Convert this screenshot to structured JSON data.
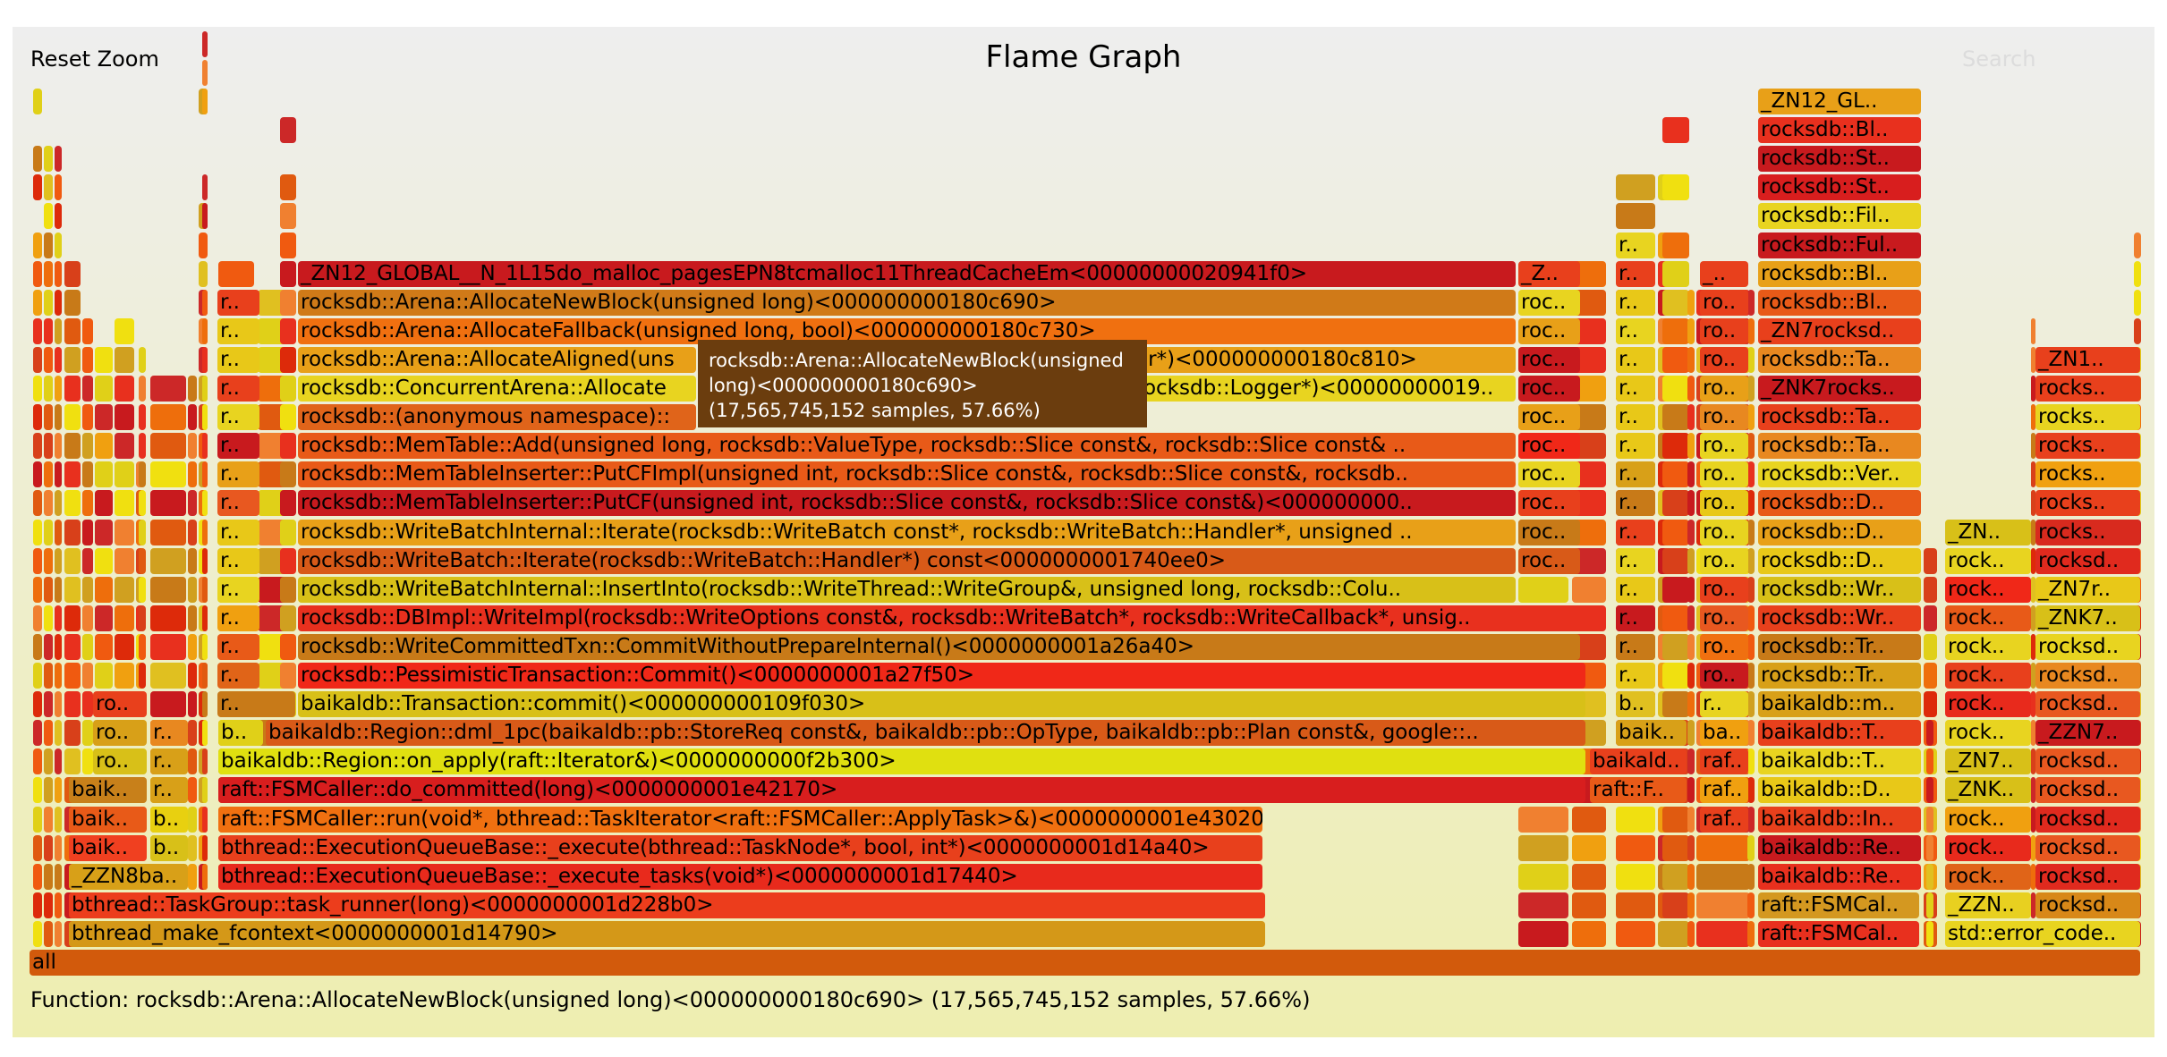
{
  "header": {
    "reset_zoom": "Reset Zoom",
    "title": "Flame Graph",
    "search": "Search"
  },
  "tooltip": {
    "text": "rocksdb::Arena::AllocateNewBlock(unsigned long)<000000000180c690> (17,565,745,152 samples, 57.66%)"
  },
  "details": {
    "text": "Function: rocksdb::Arena::AllocateNewBlock(unsigned long)<000000000180c690> (17,565,745,152 samples, 57.66%)"
  },
  "palette": [
    "#e8301e",
    "#f05a10",
    "#d8401a",
    "#e05a10",
    "#c87a18",
    "#d0a020",
    "#e0d018",
    "#f0e010",
    "#dd2a0a",
    "#ee6e0c",
    "#c81a1e",
    "#f08030",
    "#e0c020",
    "#cc2828",
    "#f0a010"
  ],
  "flame_rows": [
    {
      "row": 0,
      "frames": [
        {
          "label": "all",
          "color": "#d25a0c"
        }
      ]
    },
    {
      "row": 1,
      "frames": [
        {
          "label": "bthread_make_fcontext<0000000001d14790>",
          "color": "#d49818"
        },
        {
          "label": "raft::FSMCal..",
          "color": "#e8301e"
        },
        {
          "label": "std::error_code..",
          "color": "#e8d420"
        }
      ]
    },
    {
      "row": 2,
      "frames": [
        {
          "label": "bthread::TaskGroup::task_runner(long)<0000000001d228b0>",
          "color": "#ec3d1c"
        },
        {
          "label": "raft::FSMCal..",
          "color": "#d49820"
        },
        {
          "label": "_ZZN..",
          "color": "#e8d020"
        },
        {
          "label": "rocksd..",
          "color": "#d88818"
        }
      ]
    },
    {
      "row": 3,
      "frames": [
        {
          "label": "_ZZN8ba..",
          "color": "#d8a018"
        },
        {
          "label": "bthread::ExecutionQueueBase::_execute_tasks(void*)<0000000001d17440>",
          "color": "#e82a1c"
        },
        {
          "label": "baikaldb::Re..",
          "color": "#e8301e"
        },
        {
          "label": "rock..",
          "color": "#e06418"
        },
        {
          "label": "rocksd..",
          "color": "#e02a1e"
        }
      ]
    },
    {
      "row": 4,
      "frames": [
        {
          "label": "baik..",
          "color": "#f04020"
        },
        {
          "label": "b..",
          "color": "#d8c018"
        },
        {
          "label": "bthread::ExecutionQueueBase::_execute(bthread::TaskNode*, bool, int*)<0000000001d14a40>",
          "color": "#e8401c"
        },
        {
          "label": "baikaldb::Re..",
          "color": "#c81a1e"
        },
        {
          "label": "rock..",
          "color": "#e82a1c"
        },
        {
          "label": "rocksd..",
          "color": "#e85820"
        }
      ]
    },
    {
      "row": 5,
      "frames": [
        {
          "label": "baik..",
          "color": "#e85a18"
        },
        {
          "label": "b..",
          "color": "#e8d010"
        },
        {
          "label": "raft::FSMCaller::run(void*, bthread::TaskIterator<raft::FSMCaller::ApplyTask>&)<0000000001e43020>",
          "color": "#f07010"
        },
        {
          "label": "raf..",
          "color": "#e8401c"
        },
        {
          "label": "baikaldb::In..",
          "color": "#e8401c"
        },
        {
          "label": "rock..",
          "color": "#f0a010"
        },
        {
          "label": "rocksd..",
          "color": "#e02a1e"
        }
      ]
    },
    {
      "row": 6,
      "frames": [
        {
          "label": "baik..",
          "color": "#c8801a"
        },
        {
          "label": "r..",
          "color": "#d8a018"
        },
        {
          "label": "raft::FSMCaller::do_committed(long)<0000000001e42170>",
          "color": "#d81e1e"
        },
        {
          "label": "raft::F..",
          "color": "#e85a18"
        },
        {
          "label": "raf..",
          "color": "#f0a010"
        },
        {
          "label": "baikaldb::D..",
          "color": "#e8c818"
        },
        {
          "label": "_ZNK..",
          "color": "#d8c018"
        },
        {
          "label": "rocksd..",
          "color": "#e85820"
        }
      ]
    },
    {
      "row": 7,
      "frames": [
        {
          "label": "ro..",
          "color": "#d8c018"
        },
        {
          "label": "r..",
          "color": "#d8a018"
        },
        {
          "label": "baikaldb::Region::on_apply(raft::Iterator&)<0000000000f2b300>",
          "color": "#e0e010"
        },
        {
          "label": "baikald..",
          "color": "#e8401c"
        },
        {
          "label": "raf..",
          "color": "#e8401c"
        },
        {
          "label": "baikaldb::T..",
          "color": "#e8d420"
        },
        {
          "label": "_ZN7..",
          "color": "#d8c018"
        },
        {
          "label": "rocksd..",
          "color": "#e85820"
        }
      ]
    },
    {
      "row": 8,
      "frames": [
        {
          "label": "ro..",
          "color": "#d8a018"
        },
        {
          "label": "r..",
          "color": "#e88820"
        },
        {
          "label": "b..",
          "color": "#e0d018"
        },
        {
          "label": "baikaldb::Region::dml_1pc(baikaldb::pb::StoreReq const&, baikaldb::pb::OpType, baikaldb::pb::Plan const&, google::..",
          "color": "#d85a18"
        },
        {
          "label": "baik..",
          "color": "#d8a018"
        },
        {
          "label": "ba..",
          "color": "#f0a010"
        },
        {
          "label": "baikaldb::T..",
          "color": "#e8401c"
        },
        {
          "label": "rock..",
          "color": "#e8d420"
        },
        {
          "label": "_ZZN7..",
          "color": "#c81a1e"
        }
      ]
    },
    {
      "row": 9,
      "frames": [
        {
          "label": "ro..",
          "color": "#e8401c"
        },
        {
          "label": "r..",
          "color": "#c87a18"
        },
        {
          "label": "baikaldb::Transaction::commit()<000000000109f030>",
          "color": "#d8c018"
        },
        {
          "label": "b..",
          "color": "#e0c020"
        },
        {
          "label": "r..",
          "color": "#e8d420"
        },
        {
          "label": "baikaldb::m..",
          "color": "#d8a018"
        },
        {
          "label": "rock..",
          "color": "#e82a1c"
        },
        {
          "label": "rocksd..",
          "color": "#e85820"
        }
      ]
    },
    {
      "row": 10,
      "frames": [
        {
          "label": "r..",
          "color": "#e06418"
        },
        {
          "label": "rocksdb::PessimisticTransaction::Commit()<0000000001a27f50>",
          "color": "#f02818"
        },
        {
          "label": "r..",
          "color": "#e8c818"
        },
        {
          "label": "ro..",
          "color": "#c81a1e"
        },
        {
          "label": "rocksdb::Tr..",
          "color": "#d8a018"
        },
        {
          "label": "rock..",
          "color": "#e8401c"
        },
        {
          "label": "rocksd..",
          "color": "#e88820"
        }
      ]
    },
    {
      "row": 11,
      "frames": [
        {
          "label": "r..",
          "color": "#e85a18"
        },
        {
          "label": "rocksdb::WriteCommittedTxn::CommitWithoutPrepareInternal()<0000000001a26a40>",
          "color": "#c87a18"
        },
        {
          "label": "r..",
          "color": "#c87a18"
        },
        {
          "label": "ro..",
          "color": "#f07010"
        },
        {
          "label": "rocksdb::Tr..",
          "color": "#c87a18"
        },
        {
          "label": "rock..",
          "color": "#e8d420"
        },
        {
          "label": "rocksd..",
          "color": "#e8d420"
        }
      ]
    },
    {
      "row": 12,
      "frames": [
        {
          "label": "r..",
          "color": "#f0a010"
        },
        {
          "label": "rocksdb::DBImpl::WriteImpl(rocksdb::WriteOptions const&, rocksdb::WriteBatch*, rocksdb::WriteCallback*, unsig..",
          "color": "#e8301e"
        },
        {
          "label": "r..",
          "color": "#c81a1e"
        },
        {
          "label": "ro..",
          "color": "#e85820"
        },
        {
          "label": "rocksdb::Wr..",
          "color": "#e8401c"
        },
        {
          "label": "rock..",
          "color": "#e85a18"
        },
        {
          "label": "_ZNK7..",
          "color": "#d8c018"
        }
      ]
    },
    {
      "row": 13,
      "frames": [
        {
          "label": "r..",
          "color": "#e8d420"
        },
        {
          "label": "rocksdb::WriteBatchInternal::InsertInto(rocksdb::WriteThread::WriteGroup&, unsigned long, rocksdb::Colu..",
          "color": "#d8c018"
        },
        {
          "label": "r..",
          "color": "#e8c818"
        },
        {
          "label": "ro..",
          "color": "#e8401c"
        },
        {
          "label": "rocksdb::Wr..",
          "color": "#d8c018"
        },
        {
          "label": "rock..",
          "color": "#f02818"
        },
        {
          "label": "_ZN7r..",
          "color": "#e8c818"
        }
      ]
    },
    {
      "row": 14,
      "frames": [
        {
          "label": "r..",
          "color": "#e8c818"
        },
        {
          "label": "rocksdb::WriteBatch::Iterate(rocksdb::WriteBatch::Handler*) const<0000000001740ee0>",
          "color": "#d85a18"
        },
        {
          "label": "roc..",
          "color": "#d85a18"
        },
        {
          "label": "r..",
          "color": "#e8d420"
        },
        {
          "label": "ro..",
          "color": "#e8d420"
        },
        {
          "label": "rocksdb::D..",
          "color": "#e8c818"
        },
        {
          "label": "rock..",
          "color": "#e8d420"
        },
        {
          "label": "rocksd..",
          "color": "#e02a1e"
        }
      ]
    },
    {
      "row": 15,
      "frames": [
        {
          "label": "r..",
          "color": "#e8c818"
        },
        {
          "label": "rocksdb::WriteBatchInternal::Iterate(rocksdb::WriteBatch const*, rocksdb::WriteBatch::Handler*, unsigned ..",
          "color": "#e8a018"
        },
        {
          "label": "roc..",
          "color": "#c87a18"
        },
        {
          "label": "r..",
          "color": "#e8401c"
        },
        {
          "label": "ro..",
          "color": "#e8d420"
        },
        {
          "label": "rocksdb::D..",
          "color": "#e8a018"
        },
        {
          "label": "_ZN..",
          "color": "#d8c018"
        },
        {
          "label": "rocks..",
          "color": "#d82a1e"
        }
      ]
    },
    {
      "row": 16,
      "frames": [
        {
          "label": "r..",
          "color": "#e85820"
        },
        {
          "label": "rocksdb::MemTableInserter::PutCF(unsigned int, rocksdb::Slice const&, rocksdb::Slice const&)<000000000..",
          "color": "#c81a1e"
        },
        {
          "label": "roc..",
          "color": "#e8401c"
        },
        {
          "label": "r..",
          "color": "#c87a18"
        },
        {
          "label": "ro..",
          "color": "#e8c818"
        },
        {
          "label": "rocksdb::D..",
          "color": "#e85a18"
        },
        {
          "label": "rocks..",
          "color": "#e8401c"
        }
      ]
    },
    {
      "row": 17,
      "frames": [
        {
          "label": "r..",
          "color": "#e8a018"
        },
        {
          "label": "rocksdb::MemTableInserter::PutCFImpl(unsigned int, rocksdb::Slice const&, rocksdb::Slice const&, rocksdb..",
          "color": "#e85a18"
        },
        {
          "label": "roc..",
          "color": "#e8d420"
        },
        {
          "label": "r..",
          "color": "#d8a018"
        },
        {
          "label": "ro..",
          "color": "#e8d420"
        },
        {
          "label": "rocksdb::Ver..",
          "color": "#e8d420"
        },
        {
          "label": "rocks..",
          "color": "#f0a010"
        }
      ]
    },
    {
      "row": 18,
      "frames": [
        {
          "label": "r..",
          "color": "#c81a1e"
        },
        {
          "label": "rocksdb::MemTable::Add(unsigned long, rocksdb::ValueType, rocksdb::Slice const&, rocksdb::Slice const& ..",
          "color": "#e85a18"
        },
        {
          "label": "roc..",
          "color": "#f02818"
        },
        {
          "label": "r..",
          "color": "#e8c818"
        },
        {
          "label": "ro..",
          "color": "#e8d420"
        },
        {
          "label": "rocksdb::Ta..",
          "color": "#e88820"
        },
        {
          "label": "rocks..",
          "color": "#e8401c"
        }
      ]
    },
    {
      "row": 19,
      "frames": [
        {
          "label": "r..",
          "color": "#e8d420"
        },
        {
          "label": "rocksdb::(anonymous namespace)::",
          "color": "#e0641a"
        },
        {
          "label": "roc..",
          "color": "#e8a018"
        },
        {
          "label": "r..",
          "color": "#e8c818"
        },
        {
          "label": "ro..",
          "color": "#e88820"
        },
        {
          "label": "rocksdb::Ta..",
          "color": "#e8401c"
        },
        {
          "label": "rocks..",
          "color": "#e8d420"
        }
      ]
    },
    {
      "row": 20,
      "frames": [
        {
          "label": "r..",
          "color": "#e8401c"
        },
        {
          "label": "rocksdb::ConcurrentArena::Allocate",
          "color": "#e8d420"
        },
        {
          "label": "rocksdb::Logger*)<00000000019..",
          "color": "#e8d420"
        },
        {
          "label": "roc..",
          "color": "#c81a1e"
        },
        {
          "label": "r..",
          "color": "#e8c818"
        },
        {
          "label": "ro..",
          "color": "#e8a018"
        },
        {
          "label": "_ZNK7rocks..",
          "color": "#c81a1e"
        },
        {
          "label": "rocks..",
          "color": "#e8401c"
        }
      ]
    },
    {
      "row": 21,
      "frames": [
        {
          "label": "r..",
          "color": "#e8c818"
        },
        {
          "label": "rocksdb::Arena::AllocateAligned(uns",
          "color": "#e8a018"
        },
        {
          "label": "er*)<000000000180c810>",
          "color": "#e8a018"
        },
        {
          "label": "roc..",
          "color": "#c81a1e"
        },
        {
          "label": "r..",
          "color": "#e8c818"
        },
        {
          "label": "ro..",
          "color": "#e8401c"
        },
        {
          "label": "rocksdb::Ta..",
          "color": "#e88820"
        },
        {
          "label": "_ZN1..",
          "color": "#e8401c"
        }
      ]
    },
    {
      "row": 22,
      "frames": [
        {
          "label": "r..",
          "color": "#e8c818"
        },
        {
          "label": "rocksdb::Arena::AllocateFallback(unsigned long, bool)<000000000180c730>",
          "color": "#f07010"
        },
        {
          "label": "roc..",
          "color": "#e8a018"
        },
        {
          "label": "r..",
          "color": "#e8d420"
        },
        {
          "label": "ro..",
          "color": "#e8401c"
        },
        {
          "label": "_ZN7rocksd..",
          "color": "#e8401c"
        }
      ]
    },
    {
      "row": 23,
      "frames": [
        {
          "label": "r..",
          "color": "#e8401c"
        },
        {
          "label": "rocksdb::Arena::AllocateNewBlock(unsigned long)<000000000180c690>",
          "color": "#d07a18"
        },
        {
          "label": "roc..",
          "color": "#e8d420"
        },
        {
          "label": "r..",
          "color": "#e8c818"
        },
        {
          "label": "ro..",
          "color": "#e8401c"
        },
        {
          "label": "rocksdb::Bl..",
          "color": "#e85a18"
        }
      ]
    },
    {
      "row": 24,
      "frames": [
        {
          "label": "_ZN12_GLOBAL__N_1L15do_malloc_pagesEPN8tcmalloc11ThreadCacheEm<00000000020941f0>",
          "color": "#c81a1e"
        },
        {
          "label": "_Z..",
          "color": "#e8401c"
        },
        {
          "label": "r..",
          "color": "#e8401c"
        },
        {
          "label": "_..",
          "color": "#e8401c"
        },
        {
          "label": "rocksdb::Bl..",
          "color": "#e8a018"
        }
      ]
    },
    {
      "row": 25,
      "frames": [
        {
          "label": "r..",
          "color": "#e8d420"
        },
        {
          "label": "rocksdb::Ful..",
          "color": "#c81a1e"
        }
      ]
    },
    {
      "row": 26,
      "frames": [
        {
          "label": "rocksdb::Fil..",
          "color": "#e8d420"
        }
      ]
    },
    {
      "row": 27,
      "frames": [
        {
          "label": "rocksdb::St..",
          "color": "#d81e1e"
        }
      ]
    },
    {
      "row": 28,
      "frames": [
        {
          "label": "rocksdb::St..",
          "color": "#c81a1e"
        }
      ]
    },
    {
      "row": 29,
      "frames": [
        {
          "label": "rocksdb::Bl..",
          "color": "#e8301e"
        }
      ]
    },
    {
      "row": 30,
      "frames": [
        {
          "label": "_ZN12_GL..",
          "color": "#e8a018"
        }
      ]
    }
  ]
}
